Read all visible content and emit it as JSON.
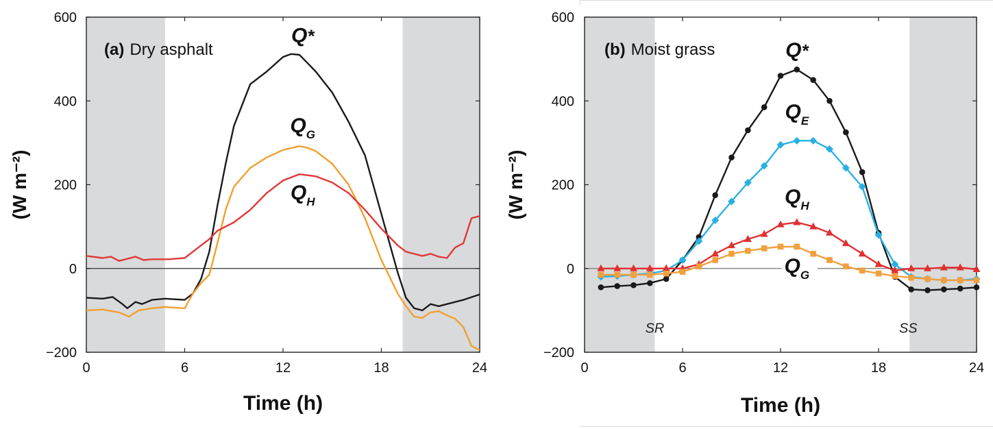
{
  "chart_data": [
    {
      "type": "line",
      "panel_label": "(a)",
      "title": "Dry asphalt",
      "xlabel": "Time (h)",
      "ylabel": "(W m⁻²)",
      "xlim": [
        0,
        24
      ],
      "ylim": [
        -200,
        600
      ],
      "xticks": [
        0,
        6,
        12,
        18,
        24
      ],
      "yticks": [
        -200,
        0,
        200,
        400,
        600
      ],
      "night_shading": [
        [
          0,
          4.8
        ],
        [
          19.3,
          24
        ]
      ],
      "series": [
        {
          "name": "Q*",
          "label_main": "Q",
          "label_sub": "*",
          "color": "#1a1a1a",
          "markers": "none",
          "label_at": [
            13.2,
            540
          ],
          "x": [
            0,
            1,
            1.6,
            2.2,
            2.5,
            3,
            3.4,
            4,
            4.8,
            6,
            6.5,
            7,
            7.5,
            8,
            8.5,
            9,
            10,
            11,
            12,
            12.5,
            13,
            13.5,
            14,
            15,
            16,
            17,
            18,
            19,
            19.5,
            20,
            20.5,
            21,
            21.5,
            22,
            23,
            24
          ],
          "values": [
            -70,
            -72,
            -68,
            -85,
            -95,
            -80,
            -85,
            -75,
            -72,
            -75,
            -60,
            -25,
            40,
            150,
            250,
            340,
            440,
            470,
            505,
            512,
            510,
            490,
            470,
            420,
            350,
            270,
            130,
            -10,
            -70,
            -95,
            -100,
            -85,
            -90,
            -85,
            -75,
            -62
          ]
        },
        {
          "name": "QG",
          "label_main": "Q",
          "label_sub": "G",
          "color": "#f0a030",
          "markers": "none",
          "label_at": [
            13.2,
            325
          ],
          "x": [
            0,
            1,
            2,
            2.6,
            3.2,
            4,
            4.8,
            6,
            6.5,
            7,
            7.5,
            8,
            8.5,
            9,
            10,
            11,
            12,
            13,
            13.5,
            14,
            15,
            16,
            17,
            18,
            19,
            19.5,
            20,
            20.5,
            21,
            21.5,
            22,
            22.5,
            23,
            23.5,
            24
          ],
          "values": [
            -100,
            -98,
            -105,
            -115,
            -100,
            -95,
            -92,
            -95,
            -60,
            -35,
            -15,
            60,
            140,
            195,
            240,
            265,
            283,
            292,
            288,
            280,
            250,
            200,
            120,
            20,
            -60,
            -90,
            -115,
            -118,
            -105,
            -102,
            -112,
            -120,
            -140,
            -185,
            -195
          ]
        },
        {
          "name": "QH",
          "label_main": "Q",
          "label_sub": "H",
          "color": "#e03838",
          "markers": "none",
          "label_at": [
            13.2,
            165
          ],
          "x": [
            0,
            1,
            1.5,
            2,
            3,
            3.5,
            4,
            5,
            6,
            6.5,
            7,
            7.5,
            8,
            9,
            10,
            11,
            12,
            13,
            14,
            15,
            16,
            17,
            18,
            19,
            19.5,
            20,
            20.5,
            21,
            21.5,
            22,
            22.5,
            23,
            23.5,
            24
          ],
          "values": [
            30,
            25,
            28,
            18,
            28,
            20,
            22,
            22,
            25,
            40,
            55,
            70,
            90,
            110,
            140,
            180,
            210,
            225,
            220,
            205,
            180,
            140,
            95,
            55,
            40,
            35,
            30,
            35,
            28,
            25,
            50,
            60,
            120,
            125
          ]
        }
      ]
    },
    {
      "type": "line",
      "panel_label": "(b)",
      "title": "Moist grass",
      "xlabel": "Time (h)",
      "ylabel": "(W m⁻²)",
      "xlim": [
        0,
        24
      ],
      "ylim": [
        -200,
        600
      ],
      "xticks": [
        0,
        6,
        12,
        18,
        24
      ],
      "yticks": [
        -200,
        0,
        200,
        400,
        600
      ],
      "night_shading": [
        [
          0,
          4.3
        ],
        [
          19.9,
          24
        ]
      ],
      "annotations": [
        {
          "text": "SR",
          "x": 4.3,
          "y": -140
        },
        {
          "text": "SS",
          "x": 19.9,
          "y": -140
        }
      ],
      "series": [
        {
          "name": "Q*",
          "label_main": "Q",
          "label_sub": "*",
          "color": "#1a1a1a",
          "markers": "circle",
          "label_at": [
            13.0,
            505
          ],
          "x": [
            1,
            2,
            3,
            4,
            5,
            6,
            7,
            8,
            9,
            10,
            11,
            12,
            13,
            14,
            15,
            16,
            17,
            18,
            19,
            20,
            21,
            22,
            23,
            24
          ],
          "values": [
            -45,
            -42,
            -40,
            -35,
            -25,
            20,
            75,
            175,
            265,
            330,
            385,
            460,
            475,
            450,
            400,
            325,
            230,
            85,
            -20,
            -50,
            -52,
            -50,
            -48,
            -45
          ]
        },
        {
          "name": "QE",
          "label_main": "Q",
          "label_sub": "E",
          "color": "#2ab0e0",
          "markers": "diamond",
          "label_at": [
            13.0,
            358
          ],
          "x": [
            1,
            2,
            3,
            4,
            5,
            6,
            7,
            8,
            9,
            10,
            11,
            12,
            13,
            14,
            15,
            16,
            17,
            18,
            19,
            20,
            21,
            22,
            23,
            24
          ],
          "values": [
            -20,
            -18,
            -15,
            -12,
            -5,
            20,
            65,
            115,
            160,
            205,
            245,
            295,
            305,
            305,
            285,
            240,
            195,
            80,
            10,
            -20,
            -25,
            -28,
            -28,
            -25
          ]
        },
        {
          "name": "QH",
          "label_main": "Q",
          "label_sub": "H",
          "color": "#e03030",
          "markers": "triangle",
          "label_at": [
            13.0,
            155
          ],
          "x": [
            1,
            2,
            3,
            4,
            5,
            6,
            7,
            8,
            9,
            10,
            11,
            12,
            13,
            14,
            15,
            16,
            17,
            18,
            19,
            20,
            21,
            22,
            23,
            24
          ],
          "values": [
            0,
            0,
            0,
            0,
            0,
            0,
            10,
            35,
            55,
            70,
            82,
            105,
            110,
            100,
            85,
            60,
            35,
            10,
            -5,
            0,
            0,
            2,
            2,
            -2
          ]
        },
        {
          "name": "QG",
          "label_main": "Q",
          "label_sub": "G",
          "color": "#f0a040",
          "markers": "square",
          "label_at": [
            13.0,
            -10
          ],
          "x": [
            1,
            2,
            3,
            4,
            5,
            6,
            7,
            8,
            9,
            10,
            11,
            12,
            13,
            14,
            15,
            16,
            17,
            18,
            19,
            20,
            21,
            22,
            23,
            24
          ],
          "values": [
            -15,
            -15,
            -15,
            -15,
            -12,
            -8,
            5,
            20,
            35,
            42,
            48,
            52,
            52,
            35,
            20,
            5,
            -5,
            -12,
            -18,
            -22,
            -25,
            -28,
            -28,
            -28
          ]
        }
      ]
    }
  ]
}
